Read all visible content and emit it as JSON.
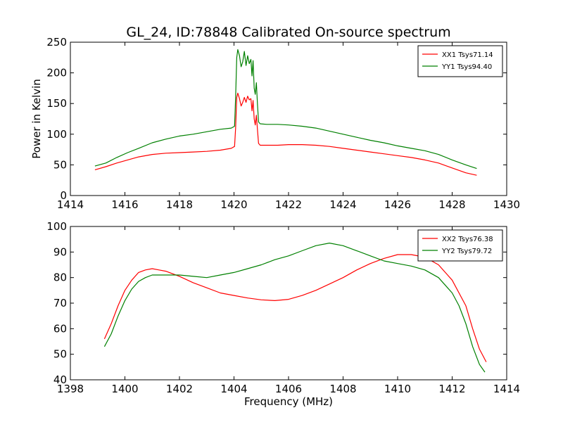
{
  "chart_data": [
    {
      "type": "line",
      "title": "GL_24, ID:78848 Calibrated On-source spectrum",
      "xlabel": "",
      "ylabel": "Power in Kelvin",
      "xlim": [
        1414,
        1430
      ],
      "ylim": [
        0,
        250
      ],
      "xticks": [
        "1414",
        "1416",
        "1418",
        "1420",
        "1422",
        "1424",
        "1426",
        "1428",
        "1430"
      ],
      "yticks": [
        "0",
        "50",
        "100",
        "150",
        "200",
        "250"
      ],
      "legend_position": "top-right",
      "grid": false,
      "series": [
        {
          "name": "XX1 Tsys71.14",
          "color": "#ff0000",
          "points": [
            [
              1414.9,
              42
            ],
            [
              1415.3,
              47
            ],
            [
              1415.7,
              53
            ],
            [
              1416.1,
              58
            ],
            [
              1416.5,
              63
            ],
            [
              1417,
              67
            ],
            [
              1417.5,
              69
            ],
            [
              1418,
              70
            ],
            [
              1418.5,
              71
            ],
            [
              1419,
              72
            ],
            [
              1419.5,
              74
            ],
            [
              1419.9,
              77
            ],
            [
              1420.02,
              80
            ],
            [
              1420.06,
              110
            ],
            [
              1420.1,
              160
            ],
            [
              1420.14,
              167
            ],
            [
              1420.2,
              158
            ],
            [
              1420.26,
              146
            ],
            [
              1420.32,
              152
            ],
            [
              1420.38,
              160
            ],
            [
              1420.44,
              152
            ],
            [
              1420.5,
              162
            ],
            [
              1420.56,
              156
            ],
            [
              1420.62,
              158
            ],
            [
              1420.66,
              138
            ],
            [
              1420.7,
              155
            ],
            [
              1420.74,
              125
            ],
            [
              1420.78,
              115
            ],
            [
              1420.82,
              131
            ],
            [
              1420.86,
              108
            ],
            [
              1420.9,
              85
            ],
            [
              1420.96,
              82
            ],
            [
              1421.2,
              82
            ],
            [
              1421.6,
              82
            ],
            [
              1422,
              83
            ],
            [
              1422.5,
              83
            ],
            [
              1423,
              82
            ],
            [
              1423.5,
              80
            ],
            [
              1424,
              77
            ],
            [
              1424.5,
              74
            ],
            [
              1425,
              71
            ],
            [
              1425.5,
              68
            ],
            [
              1426,
              65
            ],
            [
              1426.5,
              62
            ],
            [
              1427,
              58
            ],
            [
              1427.5,
              53
            ],
            [
              1428,
              45
            ],
            [
              1428.5,
              37
            ],
            [
              1428.9,
              33
            ]
          ]
        },
        {
          "name": "YY1 Tsys94.40",
          "color": "#008000",
          "points": [
            [
              1414.9,
              48
            ],
            [
              1415.3,
              53
            ],
            [
              1415.7,
              62
            ],
            [
              1416.1,
              70
            ],
            [
              1416.5,
              77
            ],
            [
              1417,
              86
            ],
            [
              1417.5,
              92
            ],
            [
              1418,
              97
            ],
            [
              1418.5,
              100
            ],
            [
              1419,
              104
            ],
            [
              1419.5,
              108
            ],
            [
              1419.9,
              110
            ],
            [
              1420.02,
              113
            ],
            [
              1420.06,
              160
            ],
            [
              1420.1,
              225
            ],
            [
              1420.14,
              238
            ],
            [
              1420.2,
              228
            ],
            [
              1420.26,
              210
            ],
            [
              1420.32,
              218
            ],
            [
              1420.38,
              235
            ],
            [
              1420.44,
              212
            ],
            [
              1420.5,
              228
            ],
            [
              1420.56,
              215
            ],
            [
              1420.62,
              222
            ],
            [
              1420.66,
              195
            ],
            [
              1420.7,
              220
            ],
            [
              1420.74,
              175
            ],
            [
              1420.78,
              165
            ],
            [
              1420.82,
              184
            ],
            [
              1420.86,
              150
            ],
            [
              1420.9,
              120
            ],
            [
              1420.96,
              117
            ],
            [
              1421.2,
              116
            ],
            [
              1421.6,
              116
            ],
            [
              1422,
              115
            ],
            [
              1422.5,
              113
            ],
            [
              1423,
              110
            ],
            [
              1423.5,
              105
            ],
            [
              1424,
              100
            ],
            [
              1424.5,
              95
            ],
            [
              1425,
              90
            ],
            [
              1425.5,
              86
            ],
            [
              1426,
              81
            ],
            [
              1426.5,
              77
            ],
            [
              1427,
              73
            ],
            [
              1427.5,
              67
            ],
            [
              1428,
              58
            ],
            [
              1428.5,
              50
            ],
            [
              1428.9,
              44
            ]
          ]
        }
      ]
    },
    {
      "type": "line",
      "title": "",
      "xlabel": "Frequency (MHz)",
      "ylabel": "",
      "xlim": [
        1398,
        1414
      ],
      "ylim": [
        40,
        100
      ],
      "xticks": [
        "1398",
        "1400",
        "1402",
        "1404",
        "1406",
        "1408",
        "1410",
        "1412",
        "1414"
      ],
      "yticks": [
        "40",
        "50",
        "60",
        "70",
        "80",
        "90",
        "100"
      ],
      "legend_position": "top-right",
      "grid": false,
      "series": [
        {
          "name": "XX2 Tsys76.38",
          "color": "#ff0000",
          "points": [
            [
              1399.25,
              56
            ],
            [
              1399.5,
              62
            ],
            [
              1399.75,
              69
            ],
            [
              1400,
              75
            ],
            [
              1400.25,
              79
            ],
            [
              1400.5,
              82
            ],
            [
              1400.75,
              83
            ],
            [
              1401,
              83.5
            ],
            [
              1401.25,
              83
            ],
            [
              1401.5,
              82.5
            ],
            [
              1402,
              80.5
            ],
            [
              1402.5,
              78
            ],
            [
              1403,
              76
            ],
            [
              1403.5,
              74
            ],
            [
              1404,
              73
            ],
            [
              1404.5,
              72
            ],
            [
              1405,
              71.3
            ],
            [
              1405.5,
              71
            ],
            [
              1406,
              71.5
            ],
            [
              1406.5,
              73
            ],
            [
              1407,
              75
            ],
            [
              1407.5,
              77.5
            ],
            [
              1408,
              80
            ],
            [
              1408.5,
              83
            ],
            [
              1409,
              85.5
            ],
            [
              1409.5,
              87.5
            ],
            [
              1410,
              89
            ],
            [
              1410.5,
              89
            ],
            [
              1411,
              88
            ],
            [
              1411.5,
              85
            ],
            [
              1412,
              79
            ],
            [
              1412.5,
              69
            ],
            [
              1412.75,
              60
            ],
            [
              1413,
              52
            ],
            [
              1413.25,
              47
            ]
          ]
        },
        {
          "name": "YY2 Tsys79.72",
          "color": "#008000",
          "points": [
            [
              1399.25,
              53
            ],
            [
              1399.5,
              58
            ],
            [
              1399.75,
              65
            ],
            [
              1400,
              71
            ],
            [
              1400.25,
              75.5
            ],
            [
              1400.5,
              78.5
            ],
            [
              1400.75,
              80
            ],
            [
              1401,
              81
            ],
            [
              1401.5,
              81
            ],
            [
              1402,
              81
            ],
            [
              1402.5,
              80.5
            ],
            [
              1403,
              80
            ],
            [
              1403.5,
              81
            ],
            [
              1404,
              82
            ],
            [
              1404.5,
              83.5
            ],
            [
              1405,
              85
            ],
            [
              1405.5,
              87
            ],
            [
              1406,
              88.5
            ],
            [
              1406.5,
              90.5
            ],
            [
              1407,
              92.5
            ],
            [
              1407.5,
              93.5
            ],
            [
              1408,
              92.5
            ],
            [
              1408.5,
              90.5
            ],
            [
              1409,
              88.5
            ],
            [
              1409.5,
              86.5
            ],
            [
              1410,
              85.5
            ],
            [
              1410.5,
              84.5
            ],
            [
              1411,
              83
            ],
            [
              1411.5,
              80
            ],
            [
              1412,
              74
            ],
            [
              1412.25,
              69
            ],
            [
              1412.5,
              62
            ],
            [
              1412.75,
              53
            ],
            [
              1413,
              46
            ],
            [
              1413.2,
              43
            ]
          ]
        }
      ]
    }
  ]
}
